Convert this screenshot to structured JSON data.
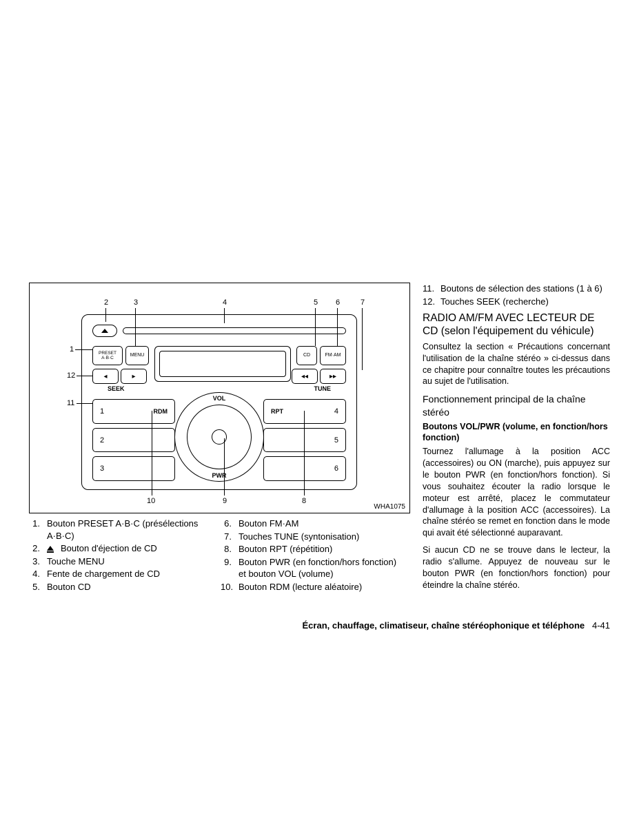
{
  "diagram": {
    "figure_code": "WHA1075",
    "labels_on_unit": {
      "preset": "PRESET\nA·B·C",
      "menu": "MENU",
      "cd": "CD",
      "fmam": "FM·AM",
      "seek": "SEEK",
      "tune": "TUNE",
      "vol": "VOL",
      "pwr": "PWR",
      "rdm": "RDM",
      "rpt": "RPT"
    },
    "preset_left": [
      "1",
      "2",
      "3"
    ],
    "preset_right": [
      "4",
      "5",
      "6"
    ],
    "callouts": [
      "1",
      "2",
      "3",
      "4",
      "5",
      "6",
      "7",
      "8",
      "9",
      "10",
      "11",
      "12"
    ]
  },
  "legend_left": [
    {
      "n": "1.",
      "t": "Bouton PRESET A·B·C (présélections A·B·C)"
    },
    {
      "n": "2.",
      "t": "Bouton d'éjection de CD",
      "eject": true
    },
    {
      "n": "3.",
      "t": "Touche MENU"
    },
    {
      "n": "4.",
      "t": "Fente de chargement de CD"
    },
    {
      "n": "5.",
      "t": "Bouton CD"
    }
  ],
  "legend_mid": [
    {
      "n": "6.",
      "t": "Bouton FM·AM"
    },
    {
      "n": "7.",
      "t": "Touches TUNE (syntonisation)"
    },
    {
      "n": "8.",
      "t": "Bouton RPT (répétition)"
    },
    {
      "n": "9.",
      "t": "Bouton PWR (en fonction/hors fonction) et bouton VOL (volume)"
    },
    {
      "n": "10.",
      "t": "Bouton RDM (lecture aléatoire)"
    }
  ],
  "legend_right_top": [
    {
      "n": "11.",
      "t": "Boutons de sélection des stations (1 à 6)"
    },
    {
      "n": "12.",
      "t": "Touches SEEK (recherche)"
    }
  ],
  "right": {
    "heading": "RADIO AM/FM AVEC LECTEUR DE CD (selon l'équipement du véhicule)",
    "para1": "Consultez la section « Précautions concernant l'utilisation de la chaîne stéréo » ci-dessus dans ce chapitre pour connaître toutes les précautions au sujet de l'utilisation.",
    "subheading": "Fonctionnement principal de la chaîne stéréo",
    "bold": "Boutons VOL/PWR (volume, en fonction/hors fonction)",
    "para2": "Tournez l'allumage à la position ACC (accessoires) ou ON (marche), puis appuyez sur le bouton PWR (en fonction/hors fonction). Si vous souhaitez écouter la radio lorsque le moteur est arrêté, placez le commutateur d'allumage à la position ACC (accessoires). La chaîne stéréo se remet en fonction dans le mode qui avait été sélectionné auparavant.",
    "para3": "Si aucun CD ne se trouve dans le lecteur, la radio s'allume. Appuyez de nouveau sur le bouton PWR (en fonction/hors fonction) pour éteindre la chaîne stéréo."
  },
  "footer": {
    "title": "Écran, chauffage, climatiseur, chaîne stéréophonique et téléphone",
    "page": "4-41"
  }
}
